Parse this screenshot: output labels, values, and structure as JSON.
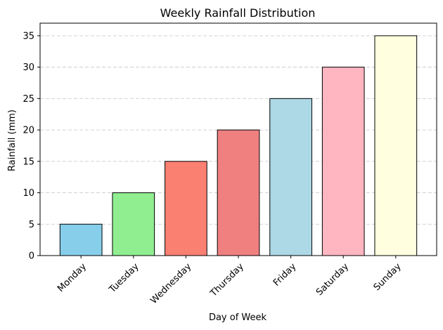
{
  "chart_data": {
    "type": "bar",
    "title": "Weekly Rainfall Distribution",
    "xlabel": "Day of Week",
    "ylabel": "Rainfall (mm)",
    "categories": [
      "Monday",
      "Tuesday",
      "Wednesday",
      "Thursday",
      "Friday",
      "Saturday",
      "Sunday"
    ],
    "values": [
      5,
      10,
      15,
      20,
      25,
      30,
      35
    ],
    "colors": [
      "#87CEEB",
      "#90EE90",
      "#FA8072",
      "#F08080",
      "#ADD8E6",
      "#FFB6C1",
      "#FFFFE0"
    ],
    "edge_color": "#000000",
    "ylim": [
      0,
      37
    ],
    "yticks": [
      0,
      5,
      10,
      15,
      20,
      25,
      30,
      35
    ],
    "ytick_labels": [
      "0",
      "5",
      "10",
      "15",
      "20",
      "25",
      "30",
      "35"
    ],
    "grid": "y-dashed",
    "grid_color": "#cccccc",
    "xtick_rotation": 45
  }
}
